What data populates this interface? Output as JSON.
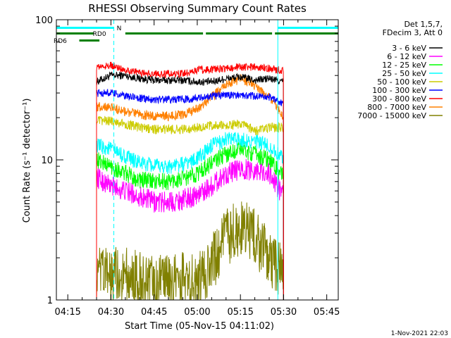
{
  "chart_data": {
    "type": "line",
    "title": "RHESSI Observing Summary Count Rates",
    "xlabel": "Start Time (05-Nov-15 04:11:02)",
    "ylabel": "Count Rate (s⁻¹ detector⁻¹)",
    "yscale": "log",
    "ylim": [
      1,
      100
    ],
    "xlim": [
      "04:11:02",
      "05:49:00"
    ],
    "x_ticks": [
      "04:15",
      "04:30",
      "04:45",
      "05:00",
      "05:15",
      "05:30",
      "05:45"
    ],
    "y_ticks": [
      "1",
      "10",
      "100"
    ],
    "footer": "1-Nov-2021 22:03",
    "legend_header": [
      "Det 1,5,7,",
      "FDecim 3, Att 0"
    ],
    "x": [
      "04:25",
      "04:30",
      "04:35",
      "04:40",
      "04:45",
      "04:50",
      "04:55",
      "05:00",
      "05:05",
      "05:10",
      "05:15",
      "05:20",
      "05:25",
      "05:30"
    ],
    "series": [
      {
        "name": "3 - 6 keV",
        "color": "#000000",
        "values": [
          36,
          40,
          40,
          38,
          37,
          37,
          37,
          36,
          36,
          38,
          39,
          37,
          38,
          36
        ]
      },
      {
        "name": "6 - 12 keV",
        "color": "#ff00ff",
        "values": [
          7.5,
          6.5,
          6.0,
          5.5,
          5.0,
          5.0,
          5.2,
          5.6,
          6.5,
          8.0,
          8.5,
          8.5,
          8.0,
          5.5
        ]
      },
      {
        "name": "12 - 25 keV",
        "color": "#00ff00",
        "values": [
          10,
          9.0,
          8.0,
          7.2,
          7.0,
          7.0,
          7.3,
          8.0,
          9.5,
          11,
          12,
          11,
          10,
          7.5
        ]
      },
      {
        "name": "25 - 50 keV",
        "color": "#00ffff",
        "values": [
          12.5,
          12.0,
          10.5,
          9.5,
          9.0,
          9.0,
          9.3,
          10.2,
          12.5,
          14,
          14,
          13.5,
          12.5,
          10
        ]
      },
      {
        "name": "50 - 100 keV",
        "color": "#cccc00",
        "values": [
          19,
          19,
          18,
          17,
          16.5,
          16.5,
          16.5,
          17,
          17.5,
          17.5,
          18,
          16,
          17,
          17
        ]
      },
      {
        "name": "100 - 300 keV",
        "color": "#0000ff",
        "values": [
          30,
          30,
          28.5,
          27.5,
          27,
          27,
          27,
          27.5,
          28.5,
          29,
          29,
          28.5,
          28,
          25
        ]
      },
      {
        "name": "300 - 800 keV",
        "color": "#ff0000",
        "values": [
          46,
          47,
          44,
          42,
          41,
          41,
          41,
          44,
          44,
          45,
          46,
          46,
          45,
          43
        ]
      },
      {
        "name": "800 - 7000 keV",
        "color": "#ff8000",
        "values": [
          24,
          24,
          22,
          21,
          20.5,
          20.5,
          21,
          23,
          28,
          34,
          38,
          34,
          28,
          20
        ]
      },
      {
        "name": "7000 - 15000 keV",
        "color": "#808000",
        "values": [
          1.5,
          1.5,
          1.5,
          1.4,
          1.3,
          1.3,
          1.4,
          1.3,
          1.8,
          2.8,
          3.3,
          2.8,
          2.0,
          1.5
        ]
      }
    ],
    "bar_labels": [
      "N",
      "RD0",
      "RD6"
    ],
    "grid": false,
    "legend_placement": "right"
  }
}
